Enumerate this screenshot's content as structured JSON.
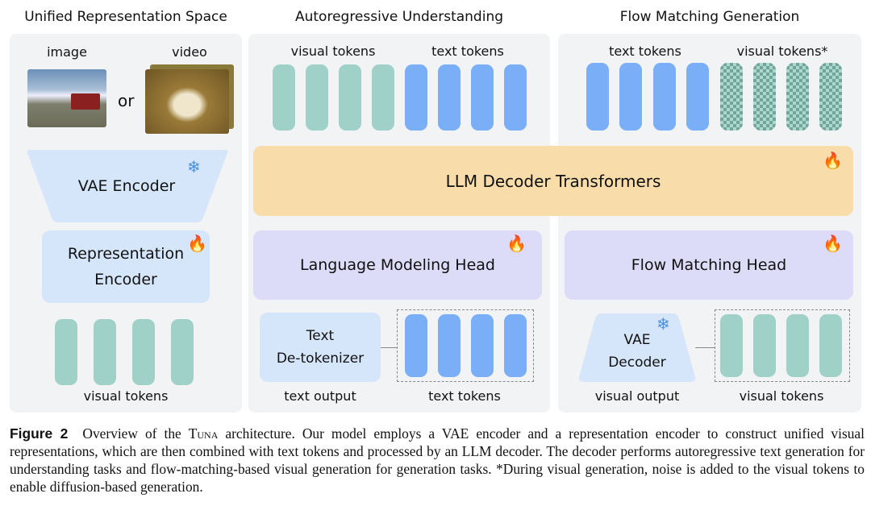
{
  "panels": [
    {
      "title": "Unified Representation Space",
      "image_label": "image",
      "video_label": "video",
      "or_label": "or",
      "vae_encoder": "VAE Encoder",
      "rep_encoder": "Representation Encoder",
      "tokens_label": "visual tokens"
    },
    {
      "title": "Autoregressive Understanding",
      "visual_label": "visual tokens",
      "text_label": "text tokens",
      "head": "Language Modeling Head",
      "detok_line1": "Text",
      "detok_line2": "De-tokenizer",
      "output_label": "text output",
      "out_tokens_label": "text tokens"
    },
    {
      "title": "Flow Matching Generation",
      "text_label": "text tokens",
      "visual_label": "visual tokens*",
      "head": "Flow Matching Head",
      "vae_line1": "VAE",
      "vae_line2": "Decoder",
      "output_label": "visual output",
      "out_tokens_label": "visual tokens"
    }
  ],
  "llm": "LLM Decoder Transformers",
  "icons": {
    "frozen": "snowflake-icon",
    "trainable": "fire-icon"
  },
  "colors": {
    "panel": "#f2f3f5",
    "visual_token": "#9fd1c8",
    "text_token": "#7aaef7",
    "llm": "#f8dcaa",
    "head": "#dcdcf8",
    "encoder": "#d5e6fb"
  },
  "caption": {
    "label": "Figure 2",
    "pre": "Overview of the ",
    "name": "Tuna",
    "post": " architecture. Our model employs a VAE encoder and a representation encoder to construct unified visual representations, which are then combined with text tokens and processed by an LLM decoder. The decoder performs autoregressive text generation for understanding tasks and flow-matching-based visual generation for generation tasks. *During visual generation, noise is added to the visual tokens to enable diffusion-based generation."
  }
}
